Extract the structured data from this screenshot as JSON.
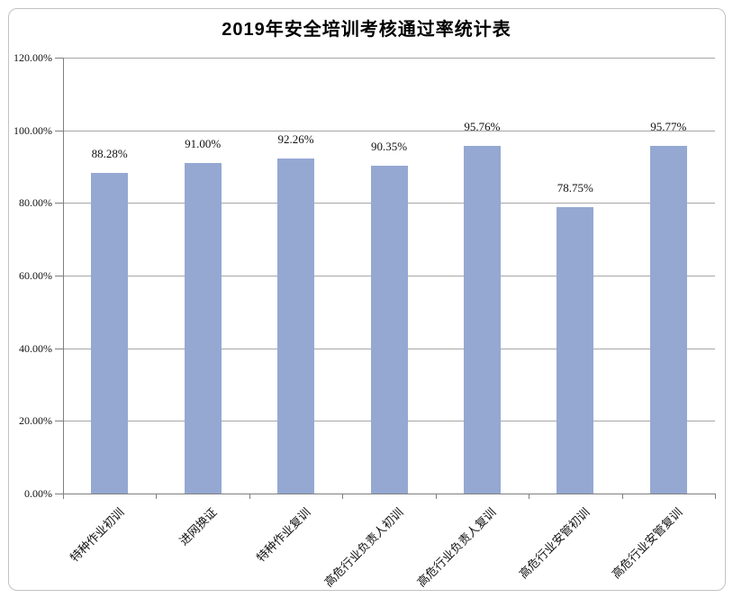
{
  "chart_data": {
    "type": "bar",
    "title": "2019年安全培训考核通过率统计表",
    "categories": [
      "特种作业初训",
      "进网换证",
      "特种作业复训",
      "高危行业负责人初训",
      "高危行业负责人复训",
      "高危行业安管初训",
      "高危行业安管复训"
    ],
    "values": [
      88.28,
      91.0,
      92.26,
      90.35,
      95.76,
      78.75,
      95.77
    ],
    "data_labels": [
      "88.28%",
      "91.00%",
      "92.26%",
      "90.35%",
      "95.76%",
      "78.75%",
      "95.77%"
    ],
    "xlabel": "",
    "ylabel": "",
    "ylim": [
      0,
      120
    ],
    "ytick_step": 20,
    "ytick_labels": [
      "0.00%",
      "20.00%",
      "40.00%",
      "60.00%",
      "80.00%",
      "100.00%",
      "120.00%"
    ],
    "grid": true,
    "legend": "none",
    "bar_color": "#95A8D2",
    "gridline_color": "#A6A6A6",
    "axis_color": "#7F7F7F",
    "border_color": "#C2C2C2",
    "background_color": "#FFFFFF",
    "text_color": "#111111"
  }
}
